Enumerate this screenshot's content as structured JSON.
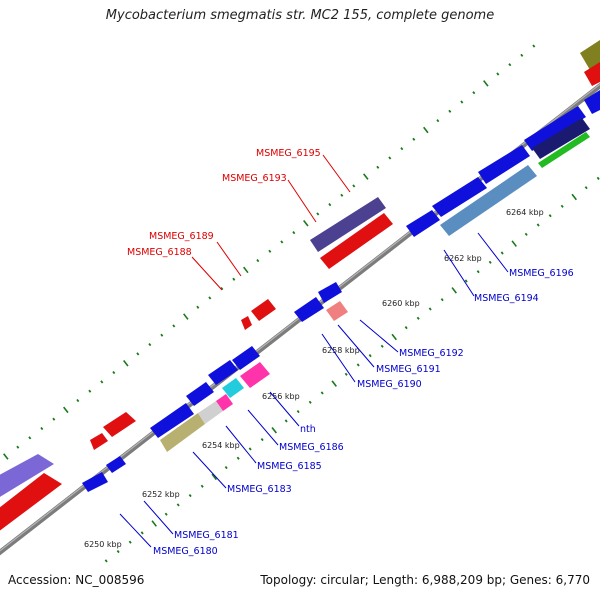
{
  "title": "Mycobacterium smegmatis str. MC2 155, complete genome",
  "footer": {
    "accession": "Accession: NC_008596",
    "topology": "Topology: circular; Length: 6,988,209 bp; Genes: 6,770"
  },
  "colors": {
    "backbone": "#8a8a8a",
    "tick": "#1a7a1a",
    "forward_label": "#dd0000",
    "reverse_label": "#0000cc"
  },
  "kbp_labels": [
    "6250 kbp",
    "6252 kbp",
    "6254 kbp",
    "6256 kbp",
    "6258 kbp",
    "6260 kbp",
    "6262 kbp",
    "6264 kbp"
  ],
  "forward_genes": [
    "MSMEG_6188",
    "MSMEG_6189",
    "MSMEG_6193",
    "MSMEG_6195"
  ],
  "reverse_genes": [
    "MSMEG_6180",
    "MSMEG_6181",
    "MSMEG_6183",
    "MSMEG_6185",
    "MSMEG_6186",
    "nth",
    "MSMEG_6190",
    "MSMEG_6191",
    "MSMEG_6192",
    "MSMEG_6194",
    "MSMEG_6196"
  ]
}
